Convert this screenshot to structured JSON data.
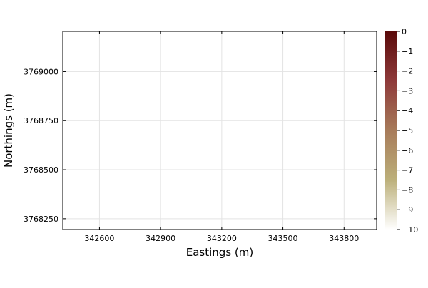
{
  "chart_data": {
    "type": "heatmap",
    "title": "",
    "xlabel": "Eastings (m)",
    "ylabel": "Northings (m)",
    "xlim": [
      342420,
      343960
    ],
    "ylim": [
      3768195,
      3769205
    ],
    "xticks": [
      342600,
      342900,
      343200,
      343500,
      343800
    ],
    "yticks": [
      3768250,
      3768500,
      3768750,
      3769000
    ],
    "grid": true,
    "data": [],
    "colorbar": {
      "ticks": [
        0,
        -1,
        -2,
        -3,
        -4,
        -5,
        -6,
        -7,
        -8,
        -9,
        -10
      ],
      "tick_labels": [
        "0",
        "−1",
        "−2",
        "−3",
        "−4",
        "−5",
        "−6",
        "−7",
        "−8",
        "−9",
        "−10"
      ],
      "range": [
        -10,
        0
      ],
      "colormap": [
        "#ffffff",
        "#bcb07a",
        "#a77b5a",
        "#8e3a3a",
        "#5a0a0a"
      ]
    }
  }
}
